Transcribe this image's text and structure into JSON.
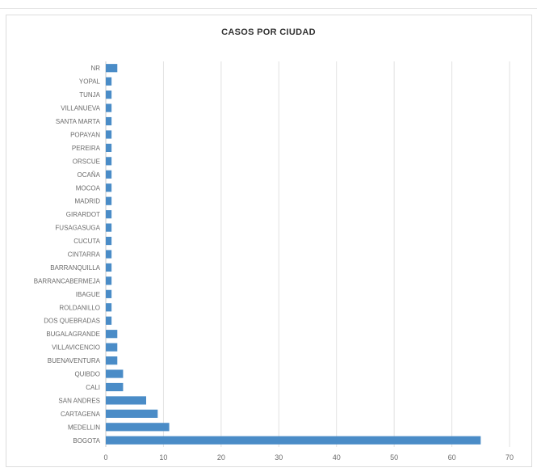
{
  "chart_data": {
    "type": "bar",
    "orientation": "horizontal",
    "title": "CASOS POR CIUDAD",
    "xlabel": "",
    "ylabel": "",
    "xlim": [
      0,
      70
    ],
    "x_ticks": [
      "0",
      "10",
      "20",
      "30",
      "40",
      "50",
      "60",
      "70"
    ],
    "grid": "vertical",
    "legend": "none",
    "bar_color": "#4a8cc7",
    "categories": [
      "NR",
      "YOPAL",
      "TUNJA",
      "VILLANUEVA",
      "SANTA MARTA",
      "POPAYAN",
      "PEREIRA",
      "ORSCUE",
      "OCAÑA",
      "MOCOA",
      "MADRID",
      "GIRARDOT",
      "FUSAGASUGA",
      "CUCUTA",
      "CINTARRA",
      "BARRANQUILLA",
      "BARRANCABERMEJA",
      "IBAGUE",
      "ROLDANILLO",
      "DOS QUEBRADAS",
      "BUGALAGRANDE",
      "VILLAVICENCIO",
      "BUENAVENTURA",
      "QUIBDO",
      "CALI",
      "SAN ANDRES",
      "CARTAGENA",
      "MEDELLIN",
      "BOGOTA"
    ],
    "values": [
      2,
      1,
      1,
      1,
      1,
      1,
      1,
      1,
      1,
      1,
      1,
      1,
      1,
      1,
      1,
      1,
      1,
      1,
      1,
      1,
      2,
      2,
      2,
      3,
      3,
      7,
      9,
      11,
      65
    ]
  }
}
